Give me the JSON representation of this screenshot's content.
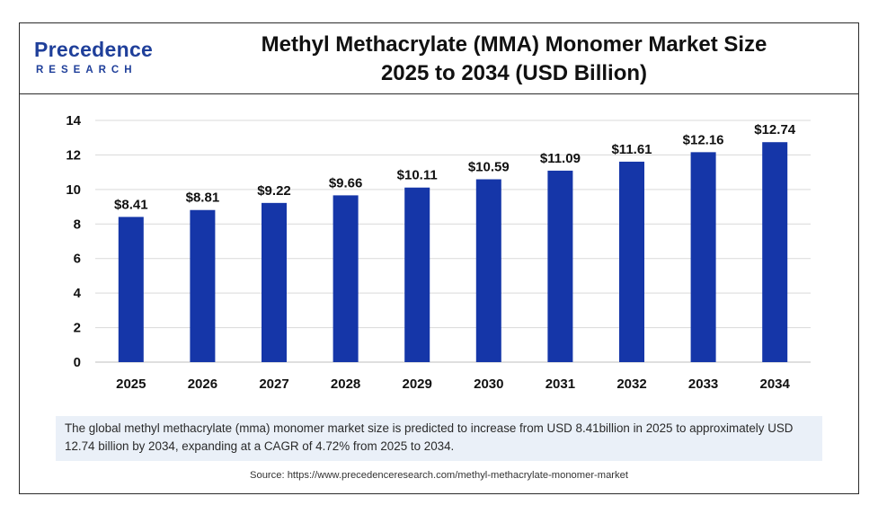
{
  "header": {
    "logo_main": "Precedence",
    "logo_sub": "RESEARCH",
    "title_line1": "Methyl Methacrylate (MMA) Monomer Market Size",
    "title_line2": "2025 to 2034 (USD Billion)"
  },
  "chart_data": {
    "type": "bar",
    "title": "Methyl Methacrylate (MMA) Monomer Market Size 2025 to 2034 (USD Billion)",
    "categories": [
      "2025",
      "2026",
      "2027",
      "2028",
      "2029",
      "2030",
      "2031",
      "2032",
      "2033",
      "2034"
    ],
    "values": [
      8.41,
      8.81,
      9.22,
      9.66,
      10.11,
      10.59,
      11.09,
      11.61,
      12.16,
      12.74
    ],
    "data_labels": [
      "$8.41",
      "$8.81",
      "$9.22",
      "$9.66",
      "$10.11",
      "$10.59",
      "$11.09",
      "$11.61",
      "$12.16",
      "$12.74"
    ],
    "yticks": [
      0,
      2,
      4,
      6,
      8,
      10,
      12,
      14
    ],
    "ylim": [
      0,
      14
    ],
    "xlabel": "",
    "ylabel": "",
    "grid": true,
    "bar_color": "#1536a8",
    "grid_color": "#d9d9d9"
  },
  "caption": "The global methyl methacrylate (mma) monomer market size is predicted to increase from USD 8.41billion in 2025 to approximately USD 12.74 billion by 2034, expanding at a CAGR of 4.72% from 2025 to 2034.",
  "source": "Source: https://www.precedenceresearch.com/methyl-methacrylate-monomer-market"
}
